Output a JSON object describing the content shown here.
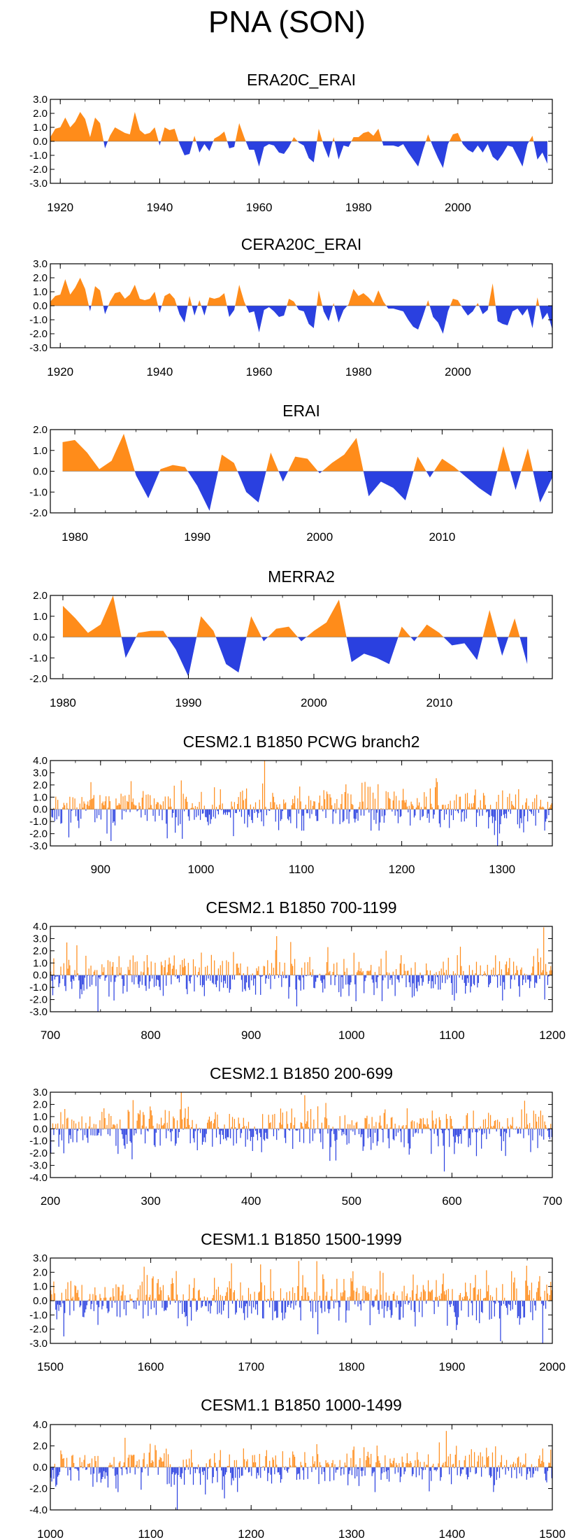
{
  "title": "PNA (SON)",
  "colors": {
    "positive": "#ff8c1a",
    "negative": "#2a40e0",
    "axis": "#000000"
  },
  "chart_data": [
    {
      "type": "area",
      "title": "ERA20C_ERAI",
      "xlim": [
        1918,
        2019
      ],
      "ylim": [
        -3,
        3
      ],
      "yticks": [
        "3.0",
        "2.0",
        "1.0",
        "0.0",
        "-1.0",
        "-2.0",
        "-3.0"
      ],
      "xticks": [
        "1920",
        "1940",
        "1960",
        "1980",
        "2000"
      ],
      "x_start": 1918,
      "x_step": 1,
      "values": [
        0.3,
        0.9,
        1.0,
        1.7,
        1.0,
        1.4,
        2.1,
        1.6,
        0.3,
        1.7,
        1.3,
        -0.5,
        0.4,
        1.0,
        0.8,
        0.6,
        0.5,
        2.1,
        0.8,
        0.5,
        0.6,
        1.0,
        -0.3,
        1.0,
        0.8,
        0.9,
        -0.2,
        -1.0,
        -0.9,
        0.4,
        -0.8,
        -0.2,
        -0.7,
        0.2,
        0.4,
        0.7,
        -0.5,
        -0.4,
        1.3,
        0.3,
        -0.6,
        -0.6,
        -1.8,
        -0.4,
        -0.2,
        -0.3,
        -0.8,
        -0.9,
        -0.4,
        0.3,
        -0.1,
        -0.3,
        -1.2,
        -1.5,
        0.9,
        -0.3,
        -1.2,
        0.3,
        -1.3,
        -0.3,
        -0.4,
        0.3,
        0.3,
        0.6,
        0.7,
        0.4,
        0.9,
        -0.3,
        -0.3,
        -0.3,
        -0.4,
        -0.2,
        -0.8,
        -1.3,
        -1.8,
        -0.6,
        0.5,
        -0.4,
        -1.2,
        -1.9,
        -0.2,
        0.5,
        0.6,
        -0.2,
        -0.6,
        -0.8,
        -0.3,
        -0.8,
        -0.2,
        -1.1,
        -1.4,
        -0.9,
        -0.3,
        -0.4,
        -1.1,
        -1.8,
        -0.2,
        0.4,
        -1.3,
        -0.8,
        -1.6
      ]
    },
    {
      "type": "area",
      "title": "CERA20C_ERAI",
      "xlim": [
        1918,
        2019
      ],
      "ylim": [
        -3,
        3
      ],
      "yticks": [
        "3.0",
        "2.0",
        "1.0",
        "0.0",
        "-1.0",
        "-2.0",
        "-3.0"
      ],
      "xticks": [
        "1920",
        "1940",
        "1960",
        "1980",
        "2000"
      ],
      "x_start": 1918,
      "x_step": 1,
      "values": [
        0.3,
        0.7,
        0.8,
        1.9,
        0.8,
        1.3,
        2.0,
        1.2,
        -0.4,
        1.4,
        1.1,
        -0.6,
        0.3,
        0.9,
        1.0,
        0.5,
        0.8,
        1.5,
        0.5,
        0.4,
        0.5,
        1.0,
        -0.5,
        0.7,
        0.9,
        0.5,
        -0.6,
        -1.2,
        0.7,
        -0.7,
        0.4,
        -0.7,
        0.6,
        0.5,
        0.6,
        0.9,
        -0.8,
        -0.3,
        1.5,
        0.3,
        -0.5,
        -0.4,
        -1.9,
        -0.3,
        -0.1,
        -0.4,
        -0.8,
        -0.7,
        0.5,
        0.3,
        -0.3,
        -0.4,
        -1.3,
        -1.6,
        1.1,
        -0.4,
        -1.1,
        0.2,
        -1.2,
        -0.3,
        0.1,
        1.2,
        0.7,
        0.9,
        0.6,
        0.2,
        1.1,
        0.3,
        -0.2,
        -0.2,
        -0.3,
        -0.4,
        -1.0,
        -1.5,
        -1.7,
        -0.7,
        0.4,
        -0.8,
        -1.2,
        -2.0,
        -0.4,
        0.5,
        0.4,
        -0.2,
        -0.7,
        -0.4,
        0.2,
        -0.6,
        -0.3,
        1.6,
        -1.1,
        -1.3,
        -1.4,
        -0.4,
        -0.2,
        -0.7,
        -0.2,
        -1.6,
        0.6,
        -1.0,
        -0.5,
        -1.7
      ]
    },
    {
      "type": "area",
      "title": "ERAI",
      "xlim": [
        1978,
        2019
      ],
      "ylim": [
        -2,
        2
      ],
      "yticks": [
        "2.0",
        "1.0",
        "0.0",
        "-1.0",
        "-2.0"
      ],
      "xticks": [
        "1980",
        "1990",
        "2000",
        "2010"
      ],
      "x_start": 1979,
      "x_step": 1,
      "values": [
        1.4,
        1.5,
        0.9,
        0.1,
        0.5,
        1.8,
        -0.2,
        -1.3,
        0.1,
        0.3,
        0.2,
        -0.7,
        -1.9,
        0.8,
        0.4,
        -1.0,
        -1.5,
        0.9,
        -0.5,
        0.7,
        0.6,
        -0.1,
        0.4,
        0.8,
        1.6,
        -1.2,
        -0.5,
        -0.8,
        -1.4,
        0.7,
        -0.3,
        0.6,
        0.2,
        -0.3,
        -0.8,
        -1.2,
        1.2,
        -0.9,
        1.1,
        -1.5,
        -0.3
      ]
    },
    {
      "type": "area",
      "title": "MERRA2",
      "xlim": [
        1979,
        2019
      ],
      "ylim": [
        -2,
        2
      ],
      "yticks": [
        "2.0",
        "1.0",
        "0.0",
        "-1.0",
        "-2.0"
      ],
      "xticks": [
        "1980",
        "1990",
        "2000",
        "2010"
      ],
      "x_start": 1980,
      "x_step": 1,
      "values": [
        1.5,
        0.9,
        0.2,
        0.6,
        2.0,
        -1.0,
        0.2,
        0.3,
        0.3,
        -0.6,
        -1.9,
        1.0,
        0.3,
        -1.3,
        -1.7,
        1.0,
        -0.2,
        0.4,
        0.5,
        -0.2,
        0.3,
        0.7,
        1.8,
        -1.2,
        -0.8,
        -1.0,
        -1.3,
        0.5,
        -0.2,
        0.6,
        0.2,
        -0.4,
        -0.3,
        -1.1,
        1.3,
        -0.9,
        0.9,
        -1.3
      ]
    },
    {
      "type": "bar",
      "title": "CESM2.1 B1850 PCWG branch2",
      "xlim": [
        850,
        1350
      ],
      "ylim": [
        -3,
        4
      ],
      "yticks": [
        "4.0",
        "3.0",
        "2.0",
        "1.0",
        "0.0",
        "-1.0",
        "-2.0",
        "-3.0"
      ],
      "xticks": [
        "900",
        "1000",
        "1100",
        "1200",
        "1300"
      ],
      "x_start": 851,
      "n": 500,
      "seed": 11,
      "amplitude": 1.0
    },
    {
      "type": "bar",
      "title": "CESM2.1 B1850 700-1199",
      "xlim": [
        700,
        1200
      ],
      "ylim": [
        -3,
        4
      ],
      "yticks": [
        "4.0",
        "3.0",
        "2.0",
        "1.0",
        "0.0",
        "-1.0",
        "-2.0",
        "-3.0"
      ],
      "xticks": [
        "700",
        "800",
        "900",
        "1000",
        "1100",
        "1200"
      ],
      "x_start": 700,
      "n": 500,
      "seed": 23,
      "amplitude": 1.0
    },
    {
      "type": "bar",
      "title": "CESM2.1 B1850 200-699",
      "xlim": [
        200,
        700
      ],
      "ylim": [
        -4,
        3
      ],
      "yticks": [
        "3.0",
        "2.0",
        "1.0",
        "0.0",
        "-1.0",
        "-2.0",
        "-3.0",
        "-4.0"
      ],
      "xticks": [
        "200",
        "300",
        "400",
        "500",
        "600",
        "700"
      ],
      "x_start": 200,
      "n": 500,
      "seed": 37,
      "amplitude": 1.0
    },
    {
      "type": "bar",
      "title": "CESM1.1 B1850 1500-1999",
      "xlim": [
        1500,
        2000
      ],
      "ylim": [
        -3,
        3
      ],
      "yticks": [
        "3.0",
        "2.0",
        "1.0",
        "0.0",
        "-1.0",
        "-2.0",
        "-3.0"
      ],
      "xticks": [
        "1500",
        "1600",
        "1700",
        "1800",
        "1900",
        "2000"
      ],
      "x_start": 1500,
      "n": 500,
      "seed": 51,
      "amplitude": 1.0
    },
    {
      "type": "bar",
      "title": "CESM1.1 B1850 1000-1499",
      "xlim": [
        1000,
        1500
      ],
      "ylim": [
        -4,
        4
      ],
      "yticks": [
        "4.0",
        "2.0",
        "0.0",
        "-2.0",
        "-4.0"
      ],
      "xticks": [
        "1000",
        "1100",
        "1200",
        "1300",
        "1400",
        "1500"
      ],
      "x_start": 1000,
      "n": 500,
      "seed": 67,
      "amplitude": 1.0
    }
  ]
}
